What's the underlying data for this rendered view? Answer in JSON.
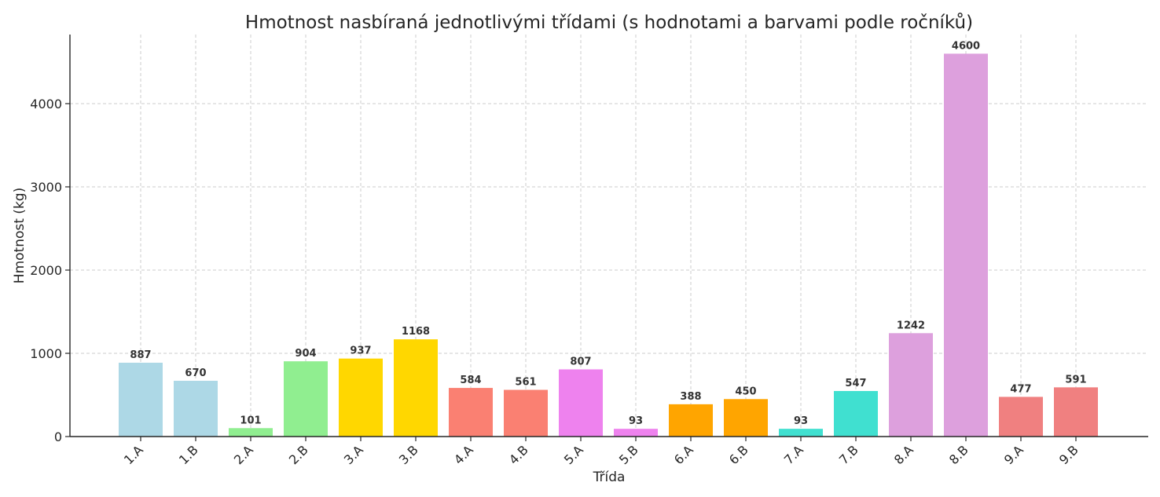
{
  "chart_data": {
    "type": "bar",
    "title": "Hmotnost nasbíraná jednotlivými třídami (s hodnotami a barvami podle ročníků)",
    "xlabel": "Třída",
    "ylabel": "Hmotnost (kg)",
    "categories": [
      "1.A",
      "1.B",
      "2.A",
      "2.B",
      "3.A",
      "3.B",
      "4.A",
      "4.B",
      "5.A",
      "5.B",
      "6.A",
      "6.B",
      "7.A",
      "7.B",
      "8.A",
      "8.B",
      "9.A",
      "9.B"
    ],
    "values": [
      887,
      670,
      101,
      904,
      937,
      1168,
      584,
      561,
      807,
      93,
      388,
      450,
      93,
      547,
      1242,
      4600,
      477,
      591
    ],
    "colors": [
      "#add8e6",
      "#add8e6",
      "#90ee90",
      "#90ee90",
      "#ffd700",
      "#ffd700",
      "#fa8072",
      "#fa8072",
      "#ee82ee",
      "#ee82ee",
      "#ffa500",
      "#ffa500",
      "#40e0d0",
      "#40e0d0",
      "#dda0dd",
      "#dda0dd",
      "#f08080",
      "#f08080"
    ],
    "ylim": [
      0,
      4830
    ],
    "yticks": [
      0,
      1000,
      2000,
      3000,
      4000
    ],
    "grid": true,
    "legend": "none"
  }
}
